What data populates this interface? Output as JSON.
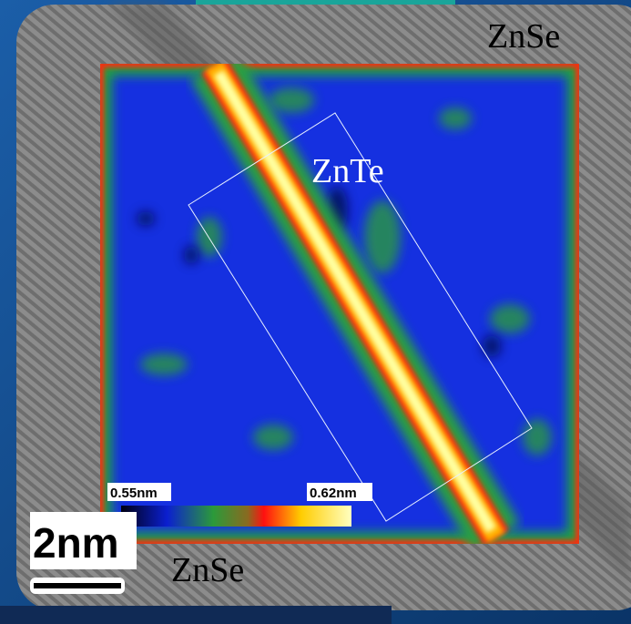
{
  "labels": {
    "top": "ZnSe",
    "center": "ZnTe",
    "bottom": "ZnSe"
  },
  "colorbar": {
    "min_label": "0.55nm",
    "max_label": "0.62nm"
  },
  "scale_bar": "2nm"
}
